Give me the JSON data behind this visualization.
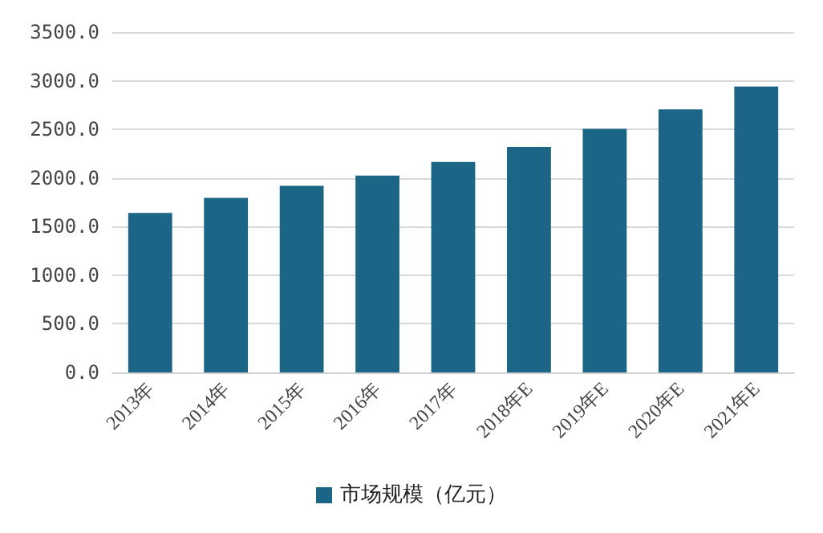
{
  "chart_data": {
    "type": "bar",
    "categories": [
      "2013年",
      "2014年",
      "2015年",
      "2016年",
      "2017年",
      "2018年E",
      "2019年E",
      "2020年E",
      "2021年E"
    ],
    "series": [
      {
        "name": "市场规模（亿元）",
        "color": "#1b6587",
        "values": [
          1640,
          1795,
          1920,
          2025,
          2165,
          2320,
          2505,
          2705,
          2940
        ]
      }
    ],
    "ylim": [
      0,
      3500
    ],
    "yticks": [
      {
        "value": 0,
        "label": "0.0"
      },
      {
        "value": 500,
        "label": "500.0"
      },
      {
        "value": 1000,
        "label": "1000.0"
      },
      {
        "value": 1500,
        "label": "1500.0"
      },
      {
        "value": 2000,
        "label": "2000.0"
      },
      {
        "value": 2500,
        "label": "2500.0"
      },
      {
        "value": 3000,
        "label": "3000.0"
      },
      {
        "value": 3500,
        "label": "3500.0"
      }
    ],
    "grid": true,
    "legend": "bottom"
  }
}
